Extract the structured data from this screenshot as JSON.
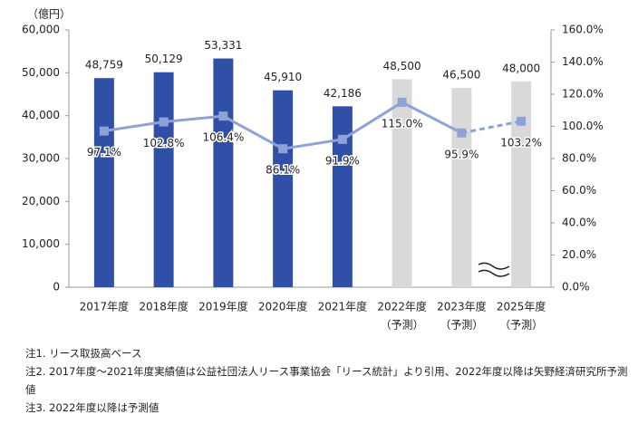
{
  "chart_data": {
    "type": "bar-line",
    "y_unit_label": "（億円）",
    "categories": [
      "2017年度",
      "2018年度",
      "2019年度",
      "2020年度",
      "2021年度",
      "2022年度",
      "2023年度",
      "2025年度"
    ],
    "sublabels": [
      null,
      null,
      null,
      null,
      null,
      "（予測）",
      "（予測）",
      "（予測）"
    ],
    "series": [
      {
        "type": "bar",
        "colors": [
          "#3050a8",
          "#3050a8",
          "#3050a8",
          "#3050a8",
          "#3050a8",
          "#d9d9d9",
          "#d9d9d9",
          "#d9d9d9"
        ],
        "values": [
          48759,
          50129,
          53331,
          45910,
          42186,
          48500,
          46500,
          48000
        ],
        "value_labels": [
          "48,759",
          "50,129",
          "53,331",
          "45,910",
          "42,186",
          "48,500",
          "46,500",
          "48,000"
        ]
      },
      {
        "type": "line",
        "axis": "y2",
        "color": "#8fa2d8",
        "dashed_from": 6,
        "values": [
          97.1,
          102.8,
          106.4,
          86.1,
          91.9,
          115.0,
          95.9,
          103.2
        ],
        "value_labels": [
          "97.1%",
          "102.8%",
          "106.4%",
          "86.1%",
          "91.9%",
          "115.0%",
          "95.9%",
          "103.2%"
        ]
      }
    ],
    "ylim": [
      0,
      60000
    ],
    "yticks": [
      0,
      {
        "value": 10000,
        "label": "10,000"
      },
      {
        "value": 20000,
        "label": "20,000"
      },
      {
        "value": 30000,
        "label": "30,000"
      },
      {
        "value": 40000,
        "label": "40,000"
      },
      {
        "value": 50000,
        "label": "50,000"
      },
      {
        "value": 60000,
        "label": "60,000"
      }
    ],
    "y2lim": [
      0,
      160
    ],
    "y2ticks": [
      {
        "value": 0,
        "label": "0.0%"
      },
      {
        "value": 20,
        "label": "20.0%"
      },
      {
        "value": 40,
        "label": "40.0%"
      },
      {
        "value": 60,
        "label": "60.0%"
      },
      {
        "value": 80,
        "label": "80.0%"
      },
      {
        "value": 100,
        "label": "100.0%"
      },
      {
        "value": 120,
        "label": "120.0%"
      },
      {
        "value": 140,
        "label": "140.0%"
      },
      {
        "value": 160,
        "label": "160.0%"
      }
    ],
    "notes": [
      "注1. リース取扱高ベース",
      "注2. 2017年度～2021年度実績値は公益社団法人リース事業協会「リース統計」より引用、2022年度以降は矢野経済研究所予測値",
      "注3. 2022年度以降は予測値"
    ]
  }
}
